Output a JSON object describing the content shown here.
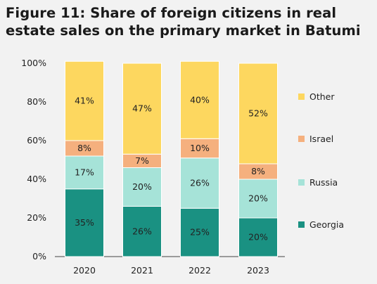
{
  "chart_data": {
    "type": "bar",
    "stacked": true,
    "title": "Figure 11: Share of foreign citizens in real estate sales on the primary market in Batumi",
    "categories": [
      "2020",
      "2021",
      "2022",
      "2023"
    ],
    "series": [
      {
        "name": "Georgia",
        "values": [
          35,
          26,
          25,
          20
        ],
        "labels": [
          "35%",
          "26%",
          "25%",
          "20%"
        ],
        "color": "#1a9182"
      },
      {
        "name": "Russia",
        "values": [
          17,
          20,
          26,
          20
        ],
        "labels": [
          "17%",
          "20%",
          "26%",
          "20%"
        ],
        "color": "#a6e3d8"
      },
      {
        "name": "Israel",
        "values": [
          8,
          7,
          10,
          8
        ],
        "labels": [
          "8%",
          "7%",
          "10%",
          "8%"
        ],
        "color": "#f5b07e"
      },
      {
        "name": "Other",
        "values": [
          41,
          47,
          40,
          52
        ],
        "labels": [
          "41%",
          "47%",
          "40%",
          "52%"
        ],
        "color": "#fdd75f"
      }
    ],
    "yticks": [
      "0%",
      "20%",
      "40%",
      "60%",
      "80%",
      "100%"
    ],
    "ylim": [
      0,
      100
    ],
    "legend_position": "right",
    "grid": false
  }
}
